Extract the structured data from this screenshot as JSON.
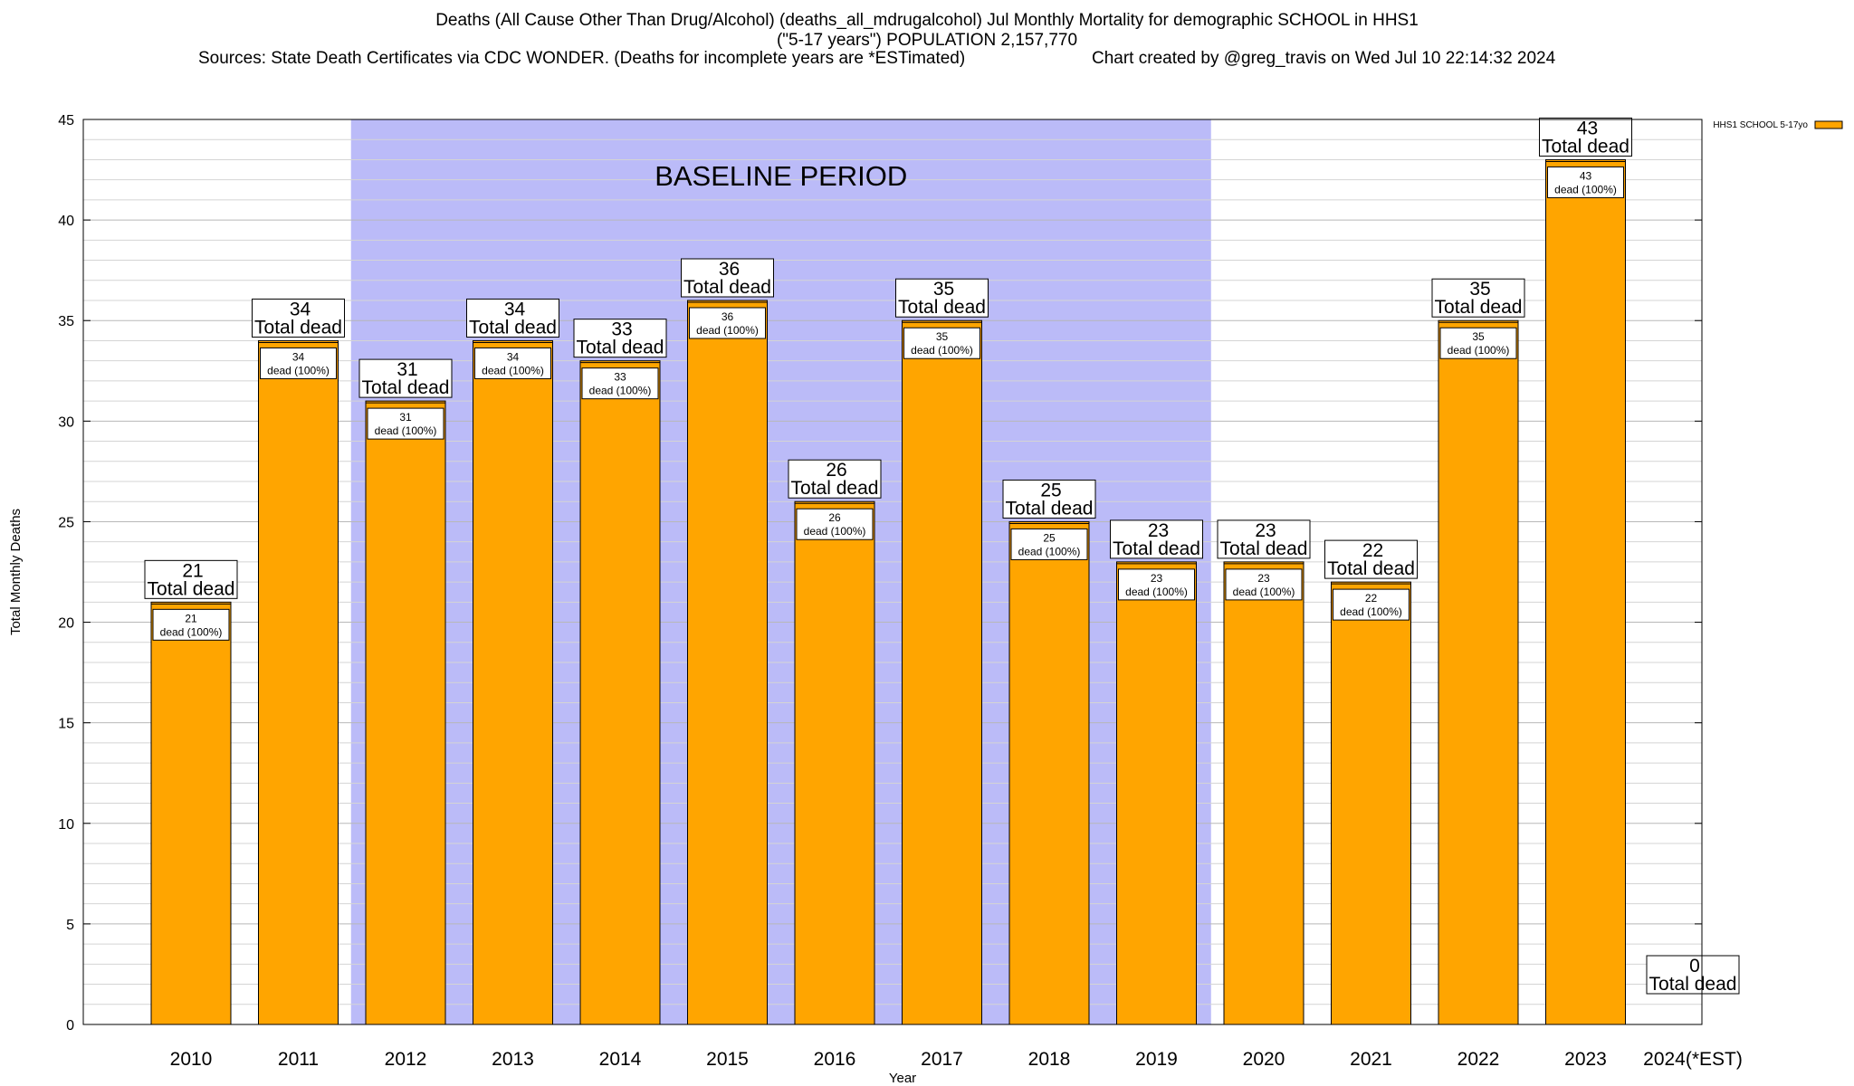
{
  "title": {
    "line1": "Deaths (All Cause Other Than Drug/Alcohol) (deaths_all_mdrugalcohol) Jul Monthly Mortality for demographic SCHOOL in HHS1",
    "line2": "(\"5-17 years\") POPULATION 2,157,770",
    "sources": "Sources: State Death Certificates via CDC WONDER. (Deaths for incomplete years are *ESTimated)",
    "created": "Chart created by @greg_travis on Wed Jul 10 22:14:32 2024"
  },
  "chart_data": {
    "type": "bar",
    "categories": [
      "2010",
      "2011",
      "2012",
      "2013",
      "2014",
      "2015",
      "2016",
      "2017",
      "2018",
      "2019",
      "2020",
      "2021",
      "2022",
      "2023",
      "2024(*EST)"
    ],
    "series": [
      {
        "name": "HHS1 SCHOOL 5-17yo",
        "values": [
          21,
          34,
          31,
          34,
          33,
          36,
          26,
          35,
          25,
          23,
          23,
          22,
          35,
          43,
          0
        ]
      }
    ],
    "xlabel": "Year",
    "ylabel": "Total Monthly Deaths",
    "ylim": [
      0,
      45
    ],
    "yticks": [
      0,
      5,
      10,
      15,
      20,
      25,
      30,
      35,
      40,
      45
    ],
    "grid": true,
    "legend": "top-right",
    "bar_color": "#ffa500",
    "baseline_color": "#bbbbf8",
    "baseline_label": "BASELINE PERIOD",
    "baseline_range": [
      "2012",
      "2019"
    ],
    "total_label": "Total dead",
    "inner_label_suffix": "dead (100%)"
  }
}
